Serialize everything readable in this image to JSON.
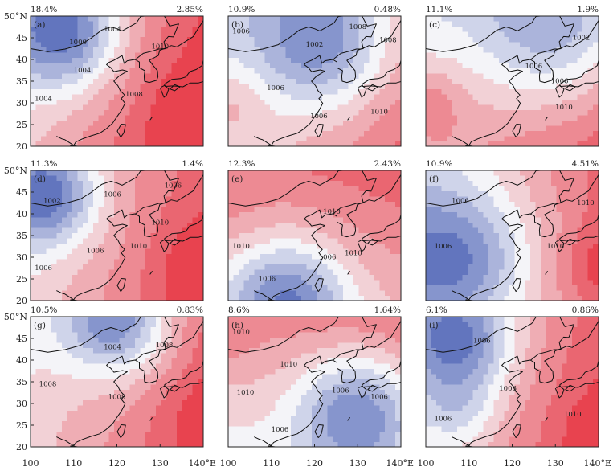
{
  "chart_data": {
    "type": "heatmap",
    "layout": "3x3",
    "lon_range": [
      100,
      140
    ],
    "lat_range": [
      20,
      50
    ],
    "x_ticks": [
      "100",
      "110",
      "120",
      "130",
      "140°E"
    ],
    "y_ticks": [
      "20",
      "25",
      "30",
      "35",
      "40",
      "45",
      "50°N"
    ],
    "colors": {
      "low": "#3d55b0",
      "mid": "#f4f4f8",
      "high": "#e8434f",
      "contour": "#ffffff",
      "coast": "#111111"
    },
    "panels": [
      {
        "label": "(a)",
        "left_value": "18.4%",
        "right_value": "2.85%",
        "field": {
          "base": 1013,
          "grad_x": 0.22,
          "grad_y": -0.08,
          "ref": [
            120,
            35
          ],
          "centers": [
            {
              "lon": 108,
              "lat": 46,
              "amp": -11,
              "r": 9
            },
            {
              "lon": 140,
              "lat": 26,
              "amp": 3,
              "r": 8
            }
          ]
        },
        "contour_labels": [
          {
            "text": "1000",
            "lon": 111,
            "lat": 43.5
          },
          {
            "text": "1004",
            "lon": 119,
            "lat": 46.5
          },
          {
            "text": "1004",
            "lon": 112,
            "lat": 37
          },
          {
            "text": "1004",
            "lon": 103,
            "lat": 30.5
          },
          {
            "text": "1008",
            "lon": 124,
            "lat": 31.5
          },
          {
            "text": "1010",
            "lon": 130,
            "lat": 42.5
          }
        ]
      },
      {
        "label": "(b)",
        "left_value": "10.9%",
        "right_value": "0.48%",
        "field": {
          "base": 1010,
          "grad_x": 0.15,
          "grad_y": -0.1,
          "ref": [
            120,
            35
          ],
          "centers": [
            {
              "lon": 122,
              "lat": 44,
              "amp": -9,
              "r": 11
            },
            {
              "lon": 100,
              "lat": 30,
              "amp": 3,
              "r": 6
            }
          ]
        },
        "contour_labels": [
          {
            "text": "1002",
            "lon": 120,
            "lat": 43
          },
          {
            "text": "1008",
            "lon": 130,
            "lat": 47
          },
          {
            "text": "1008",
            "lon": 137,
            "lat": 44
          },
          {
            "text": "1006",
            "lon": 103,
            "lat": 46
          },
          {
            "text": "1006",
            "lon": 111,
            "lat": 33
          },
          {
            "text": "1006",
            "lon": 121,
            "lat": 26.5
          },
          {
            "text": "1010",
            "lon": 135,
            "lat": 27.5
          }
        ]
      },
      {
        "label": "(c)",
        "left_value": "11.1%",
        "right_value": "1.9%",
        "field": {
          "base": 1011,
          "grad_x": 0.12,
          "grad_y": -0.14,
          "ref": [
            120,
            35
          ],
          "centers": [
            {
              "lon": 130,
              "lat": 48,
              "amp": -8,
              "r": 13
            },
            {
              "lon": 100,
              "lat": 30,
              "amp": 4,
              "r": 6
            }
          ]
        },
        "contour_labels": [
          {
            "text": "1002",
            "lon": 136,
            "lat": 44.5
          },
          {
            "text": "1006",
            "lon": 125,
            "lat": 38
          },
          {
            "text": "1006",
            "lon": 131,
            "lat": 34.5
          },
          {
            "text": "1010",
            "lon": 132,
            "lat": 28.5
          }
        ]
      },
      {
        "label": "(d)",
        "left_value": "11.3%",
        "right_value": "1.4%",
        "field": {
          "base": 1012,
          "grad_x": 0.2,
          "grad_y": -0.05,
          "ref": [
            120,
            35
          ],
          "centers": [
            {
              "lon": 104,
              "lat": 44,
              "amp": -10,
              "r": 8
            },
            {
              "lon": 140,
              "lat": 27,
              "amp": 3,
              "r": 7
            }
          ]
        },
        "contour_labels": [
          {
            "text": "1002",
            "lon": 105,
            "lat": 42.5
          },
          {
            "text": "1006",
            "lon": 119,
            "lat": 44
          },
          {
            "text": "1006",
            "lon": 133,
            "lat": 46
          },
          {
            "text": "1010",
            "lon": 130,
            "lat": 37.5
          },
          {
            "text": "1010",
            "lon": 125,
            "lat": 32
          },
          {
            "text": "1006",
            "lon": 115,
            "lat": 31
          },
          {
            "text": "1006",
            "lon": 103,
            "lat": 27
          }
        ]
      },
      {
        "label": "(e)",
        "left_value": "12.3%",
        "right_value": "2.43%",
        "field": {
          "base": 1012,
          "grad_x": 0.05,
          "grad_y": 0.15,
          "ref": [
            120,
            35
          ],
          "centers": [
            {
              "lon": 114,
              "lat": 20,
              "amp": -10,
              "r": 10
            },
            {
              "lon": 100,
              "lat": 40,
              "amp": 1,
              "r": 6
            }
          ]
        },
        "contour_labels": [
          {
            "text": "1010",
            "lon": 103,
            "lat": 32
          },
          {
            "text": "1010",
            "lon": 124,
            "lat": 40
          },
          {
            "text": "1006",
            "lon": 123,
            "lat": 29.5
          },
          {
            "text": "1006",
            "lon": 109,
            "lat": 24.5
          },
          {
            "text": "1010",
            "lon": 129,
            "lat": 30.5
          }
        ]
      },
      {
        "label": "(f)",
        "left_value": "10.9%",
        "right_value": "4.51%",
        "field": {
          "base": 1010,
          "grad_x": 0.22,
          "grad_y": 0.02,
          "ref": [
            120,
            35
          ],
          "centers": [
            {
              "lon": 108,
              "lat": 30,
              "amp": -8,
              "r": 11
            },
            {
              "lon": 140,
              "lat": 28,
              "amp": 3,
              "r": 6
            }
          ]
        },
        "contour_labels": [
          {
            "text": "1006",
            "lon": 108,
            "lat": 42.5
          },
          {
            "text": "1010",
            "lon": 137,
            "lat": 42
          },
          {
            "text": "1006",
            "lon": 104,
            "lat": 32
          },
          {
            "text": "1010",
            "lon": 130,
            "lat": 32
          }
        ]
      },
      {
        "label": "(g)",
        "left_value": "10.5%",
        "right_value": "0.83%",
        "field": {
          "base": 1012,
          "grad_x": 0.18,
          "grad_y": -0.04,
          "ref": [
            120,
            35
          ],
          "centers": [
            {
              "lon": 120,
              "lat": 49,
              "amp": -11,
              "r": 9
            },
            {
              "lon": 140,
              "lat": 26,
              "amp": 2,
              "r": 7
            }
          ]
        },
        "contour_labels": [
          {
            "text": "1004",
            "lon": 119,
            "lat": 42.5
          },
          {
            "text": "1008",
            "lon": 131,
            "lat": 43
          },
          {
            "text": "1008",
            "lon": 104,
            "lat": 34
          },
          {
            "text": "1008",
            "lon": 120,
            "lat": 31
          }
        ]
      },
      {
        "label": "(h)",
        "left_value": "8.6%",
        "right_value": "1.64%",
        "field": {
          "base": 1011,
          "grad_x": 0.05,
          "grad_y": 0.18,
          "ref": [
            120,
            35
          ],
          "centers": [
            {
              "lon": 130,
              "lat": 28,
              "amp": -10,
              "r": 10
            },
            {
              "lon": 100,
              "lat": 42,
              "amp": 1,
              "r": 5
            }
          ]
        },
        "contour_labels": [
          {
            "text": "1010",
            "lon": 103,
            "lat": 46
          },
          {
            "text": "1010",
            "lon": 114,
            "lat": 38.5
          },
          {
            "text": "1010",
            "lon": 104,
            "lat": 32
          },
          {
            "text": "1006",
            "lon": 126,
            "lat": 32.5
          },
          {
            "text": "1006",
            "lon": 135,
            "lat": 31
          },
          {
            "text": "1006",
            "lon": 112,
            "lat": 23.5
          }
        ]
      },
      {
        "label": "(i)",
        "left_value": "6.1%",
        "right_value": "0.86%",
        "field": {
          "base": 1012,
          "grad_x": 0.2,
          "grad_y": -0.06,
          "ref": [
            120,
            35
          ],
          "centers": [
            {
              "lon": 108,
              "lat": 45,
              "amp": -10,
              "r": 9
            },
            {
              "lon": 108,
              "lat": 28,
              "amp": -4,
              "r": 7
            },
            {
              "lon": 140,
              "lat": 23,
              "amp": 2,
              "r": 6
            }
          ]
        },
        "contour_labels": [
          {
            "text": "1006",
            "lon": 113,
            "lat": 44
          },
          {
            "text": "1006",
            "lon": 119,
            "lat": 33
          },
          {
            "text": "1006",
            "lon": 104,
            "lat": 26
          },
          {
            "text": "1010",
            "lon": 134,
            "lat": 27
          }
        ]
      }
    ]
  }
}
